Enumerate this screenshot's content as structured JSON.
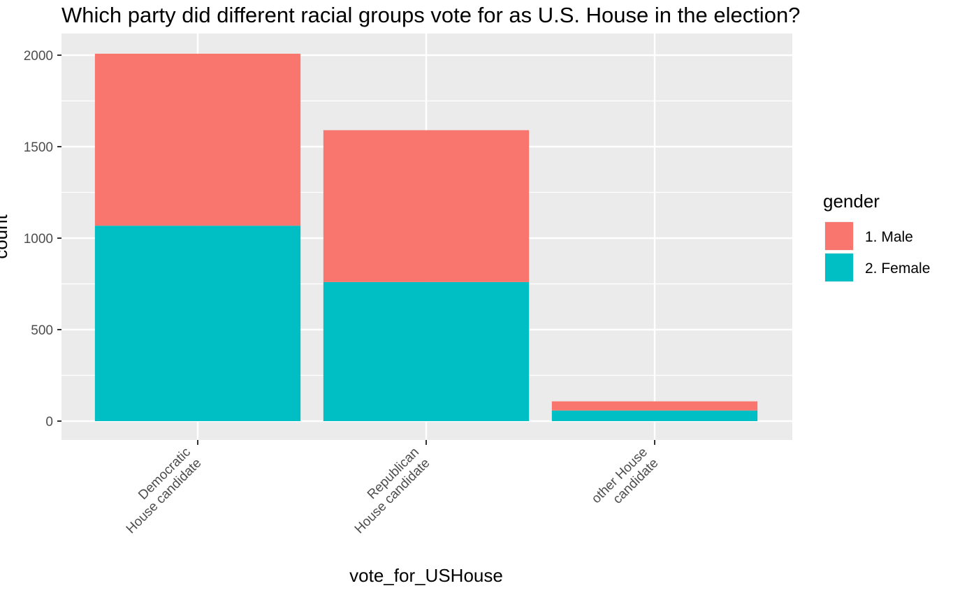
{
  "chart_data": {
    "type": "bar",
    "stacked": true,
    "title": "Which party did different racial groups vote for as U.S. House in the election?",
    "xlabel": "vote_for_USHouse",
    "ylabel": "count",
    "ylim": [
      -100,
      2100
    ],
    "yticks": [
      "0",
      "500",
      "1000",
      "1500",
      "2000"
    ],
    "categories": [
      [
        "Democratic",
        "House candidate"
      ],
      [
        "Republican",
        "House candidate"
      ],
      [
        "other House",
        "candidate"
      ]
    ],
    "series": [
      {
        "name": "1. Male",
        "color": "#F8766D",
        "values": [
          940,
          830,
          50
        ]
      },
      {
        "name": "2. Female",
        "color": "#00BFC4",
        "values": [
          1068,
          760,
          58
        ]
      }
    ],
    "legend": {
      "title": "gender",
      "position": "right"
    },
    "panel_background": "#EBEBEB",
    "grid": true
  }
}
